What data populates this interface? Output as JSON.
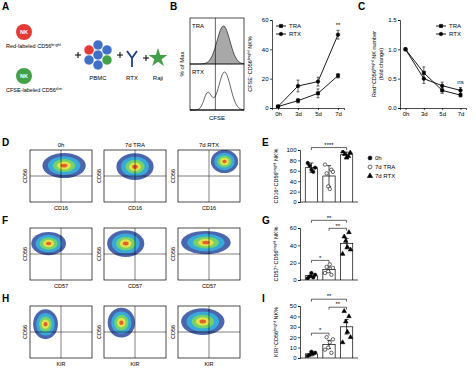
{
  "panel_A": {
    "title": "A",
    "items": [
      {
        "label": "NK",
        "caption": "Red-labeled CD56ᵇʳⁱᵍʰᵗ",
        "color": "#e53935"
      },
      {
        "label": "NK",
        "caption": "CFSE-labeled CD56ᵈⁱᵐ",
        "color": "#43a047"
      },
      {
        "label": "PBMC",
        "color": "#3f6fc6"
      },
      {
        "label": "RTX",
        "color": "#1a3d8f"
      },
      {
        "label": "Raji",
        "color": "#43a047"
      }
    ]
  },
  "histogram_panel": {
    "title": "B",
    "x_label": "CFSE",
    "y_label": "% of Max",
    "tracks": [
      "TRA",
      "RTX"
    ]
  },
  "flow_plots": [
    {
      "title": "D",
      "columns": [
        "0h",
        "7d TRA",
        "7d RTX"
      ],
      "x_label": "CD16",
      "y_label": "CD56"
    },
    {
      "title": "F",
      "x_label": "CD57",
      "y_label": "CD56"
    },
    {
      "title": "H",
      "x_label": "KIR",
      "y_label": "CD56"
    }
  ],
  "chart_data": [
    {
      "type": "line",
      "categories": [
        "0h",
        "3d",
        "5d",
        "7d"
      ],
      "y_label": "CFSE⁻CD56ᵇʳⁱᵍʰᵗ NK%",
      "ylim": [
        0,
        60
      ],
      "yticks": [
        0,
        20,
        40,
        60
      ],
      "legend": "upper left",
      "series": [
        {
          "name": "TRA",
          "color": "#000000",
          "marker": "square",
          "values": [
            1,
            5,
            10,
            22
          ],
          "errors": [
            0.5,
            1.5,
            3,
            1.5
          ]
        },
        {
          "name": "RTX",
          "color": "#000000",
          "marker": "circle",
          "values": [
            1,
            15,
            18,
            50
          ],
          "errors": [
            0.5,
            4,
            3,
            3
          ]
        }
      ],
      "annotations": [
        {
          "text": "**",
          "category": "7d"
        }
      ]
    },
    {
      "type": "line",
      "title": "C",
      "categories": [
        "0h",
        "3d",
        "5d",
        "7d"
      ],
      "y_label": [
        "Red⁺CD56ᵇʳⁱᵍʰᵗ NK number",
        "(fold change)"
      ],
      "ylim": [
        0,
        1.5
      ],
      "yticks": [
        {
          "value": 0,
          "label": "0.0"
        },
        {
          "value": 0.5,
          "label": "0.5"
        },
        {
          "value": 1,
          "label": "1.0"
        },
        {
          "value": 1.5,
          "label": "1.5"
        }
      ],
      "legend": "upper right",
      "series": [
        {
          "name": "TRA",
          "color": "#000000",
          "marker": "square",
          "values": [
            1.0,
            0.6,
            0.3,
            0.22
          ],
          "errors": [
            0,
            0.1,
            0.05,
            0.03
          ]
        },
        {
          "name": "RTX",
          "color": "#000000",
          "marker": "circle",
          "values": [
            1.0,
            0.5,
            0.38,
            0.3
          ],
          "errors": [
            0,
            0.08,
            0.06,
            0.05
          ]
        }
      ],
      "annotations": [
        {
          "text": "ns",
          "category": "7d"
        }
      ]
    },
    {
      "type": "bar",
      "title": "E",
      "y_label": "CD16⁺CD56ᵇʳⁱᵍʰᵗ NK%",
      "ylim": [
        0,
        100
      ],
      "yticks": [
        0,
        20,
        40,
        60,
        80,
        100
      ],
      "tick_labels": "y",
      "legend": "right",
      "series": [
        {
          "name": "0h",
          "marker": "circle",
          "color": "#000000",
          "values": [
            66
          ],
          "errors": [
            9
          ],
          "points": [
            [
              75,
              70,
              62,
              58,
              66
            ]
          ]
        },
        {
          "name": "7d TRA",
          "marker": "open-circle",
          "color": "#000000",
          "values": [
            50
          ],
          "errors": [
            20
          ],
          "points": [
            [
              72,
              55,
              30,
              25,
              62,
              58
            ]
          ]
        },
        {
          "name": "7d RTX",
          "marker": "triangle",
          "color": "#000000",
          "values": [
            91
          ],
          "errors": [
            5
          ],
          "points": [
            [
              97,
              92,
              85,
              88,
              95
            ]
          ]
        }
      ],
      "annotations": [
        {
          "text": "****",
          "between": [
            0,
            2
          ]
        }
      ]
    },
    {
      "type": "bar",
      "title": "G",
      "y_label": "CD57⁺CD56ᵇʳⁱᵍʰᵗ NK%",
      "ylim": [
        0,
        60
      ],
      "yticks": [
        0,
        20,
        40,
        60
      ],
      "tick_labels": "y",
      "series": [
        {
          "marker": "circle",
          "color": "#000000",
          "values": [
            5
          ],
          "errors": [
            2
          ],
          "points": [
            [
              2,
              4,
              8,
              3,
              6
            ]
          ]
        },
        {
          "marker": "open-circle",
          "color": "#000000",
          "values": [
            12
          ],
          "errors": [
            3
          ],
          "points": [
            [
              8,
              15,
              10,
              18,
              6,
              14
            ]
          ]
        },
        {
          "marker": "triangle",
          "color": "#000000",
          "values": [
            42
          ],
          "errors": [
            6
          ],
          "points": [
            [
              30,
              50,
              45,
              38,
              55,
              35
            ]
          ]
        }
      ],
      "annotations": [
        {
          "text": "*",
          "between": [
            0,
            1
          ]
        },
        {
          "text": "**",
          "between": [
            1,
            2
          ]
        },
        {
          "text": "**",
          "between": [
            0,
            2
          ]
        }
      ]
    },
    {
      "type": "bar",
      "title": "I",
      "y_label": "KIR⁺CD56ᵇʳⁱᵍʰᵗ NK%",
      "ylim": [
        0,
        50
      ],
      "yticks": [
        0,
        10,
        20,
        30,
        40,
        50
      ],
      "tick_labels": "y",
      "series": [
        {
          "marker": "circle",
          "color": "#000000",
          "values": [
            4
          ],
          "errors": [
            2
          ],
          "points": [
            [
              2,
              3,
              6,
              4,
              5
            ]
          ]
        },
        {
          "marker": "open-circle",
          "color": "#000000",
          "values": [
            13
          ],
          "errors": [
            4
          ],
          "points": [
            [
              8,
              20,
              10,
              15,
              5,
              18
            ]
          ]
        },
        {
          "marker": "triangle",
          "color": "#000000",
          "values": [
            30
          ],
          "errors": [
            7
          ],
          "points": [
            [
              15,
              45,
              35,
              25,
              40,
              20
            ]
          ]
        }
      ],
      "annotations": [
        {
          "text": "*",
          "between": [
            0,
            1
          ]
        },
        {
          "text": "**",
          "between": [
            1,
            2
          ]
        },
        {
          "text": "**",
          "between": [
            0,
            2
          ]
        }
      ]
    }
  ]
}
